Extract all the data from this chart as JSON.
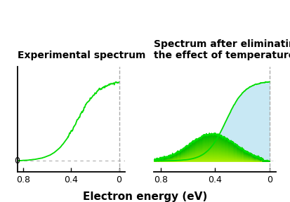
{
  "title_left": "Experimental spectrum",
  "title_right": "Spectrum after eliminating\nthe effect of temperature",
  "xlabel": "Electron energy (eV)",
  "green_line_color": "#00dd00",
  "light_blue_color": "#c8e8f4",
  "background_color": "#ffffff",
  "title_fontsize": 10,
  "label_fontsize": 11,
  "tick_fontsize": 9
}
